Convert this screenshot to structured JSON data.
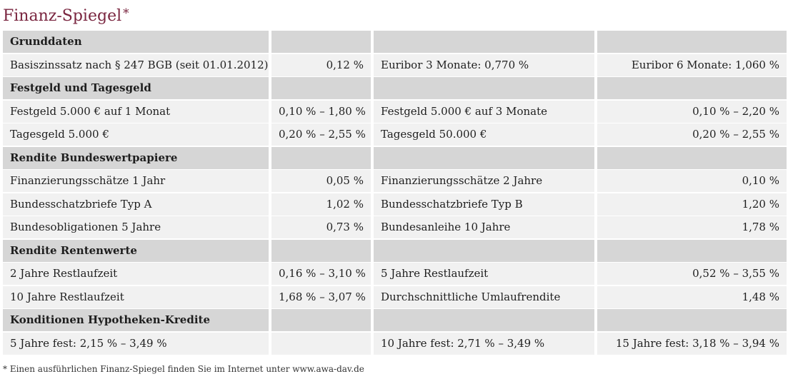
{
  "title": "Finanz-Spiegel",
  "title_mark": "*",
  "rows": [
    {
      "type": "head",
      "c1": "Grunddaten",
      "c2": "",
      "c3": "",
      "c4": ""
    },
    {
      "type": "data",
      "c1": "Basiszinssatz nach § 247 BGB (seit 01.01.2012)",
      "c2": "0,12 %",
      "c3": "Euribor 3 Monate: 0,770 %",
      "c4": "Euribor 6 Monate: 1,060 %"
    },
    {
      "type": "head",
      "c1": "Festgeld und Tagesgeld",
      "c2": "",
      "c3": "",
      "c4": ""
    },
    {
      "type": "data",
      "c1": "Festgeld 5.000 € auf 1 Monat",
      "c2": "0,10 % – 1,80 %",
      "c3": "Festgeld 5.000 € auf 3 Monate",
      "c4": "0,10 % – 2,20 %"
    },
    {
      "type": "data",
      "c1": "Tagesgeld 5.000 €",
      "c2": "0,20 % – 2,55 %",
      "c3": "Tagesgeld 50.000 €",
      "c4": "0,20 % – 2,55 %"
    },
    {
      "type": "head",
      "c1": "Rendite Bundeswertpapiere",
      "c2": "",
      "c3": "",
      "c4": ""
    },
    {
      "type": "data",
      "c1": "Finanzierungsschätze 1 Jahr",
      "c2": "0,05 %",
      "c3": "Finanzierungsschätze 2 Jahre",
      "c4": "0,10 %"
    },
    {
      "type": "data",
      "c1": "Bundesschatzbriefe Typ A",
      "c2": "1,02 %",
      "c3": "Bundesschatzbriefe Typ B",
      "c4": "1,20 %"
    },
    {
      "type": "data",
      "c1": "Bundesobligationen 5 Jahre",
      "c2": "0,73 %",
      "c3": "Bundesanleihe 10 Jahre",
      "c4": "1,78 %"
    },
    {
      "type": "head",
      "c1": "Rendite Rentenwerte",
      "c2": "",
      "c3": "",
      "c4": ""
    },
    {
      "type": "data",
      "c1": "2 Jahre Restlaufzeit",
      "c2": "0,16 % – 3,10 %",
      "c3": "5 Jahre Restlaufzeit",
      "c4": "0,52 % – 3,55 %"
    },
    {
      "type": "data",
      "c1": "10 Jahre Restlaufzeit",
      "c2": "1,68 % – 3,07 %",
      "c3": "Durchschnittliche Umlaufrendite",
      "c4": "1,48 %"
    },
    {
      "type": "head",
      "c1": "Konditionen Hypotheken-Kredite",
      "c2": "",
      "c3": "",
      "c4": ""
    },
    {
      "type": "data",
      "c1": "5 Jahre fest: 2,15 % – 3,49 %",
      "c2": "",
      "c3": "10 Jahre fest: 2,71 % – 3,49 %",
      "c4": "15 Jahre fest: 3,18 % – 3,94 %"
    }
  ],
  "footnote": "* Einen ausführlichen Finanz-Spiegel finden Sie im Internet unter www.awa-dav.de",
  "colors": {
    "title": "#7a2640",
    "header_bg": "#d6d6d6",
    "row_bg": "#f1f1f1"
  }
}
